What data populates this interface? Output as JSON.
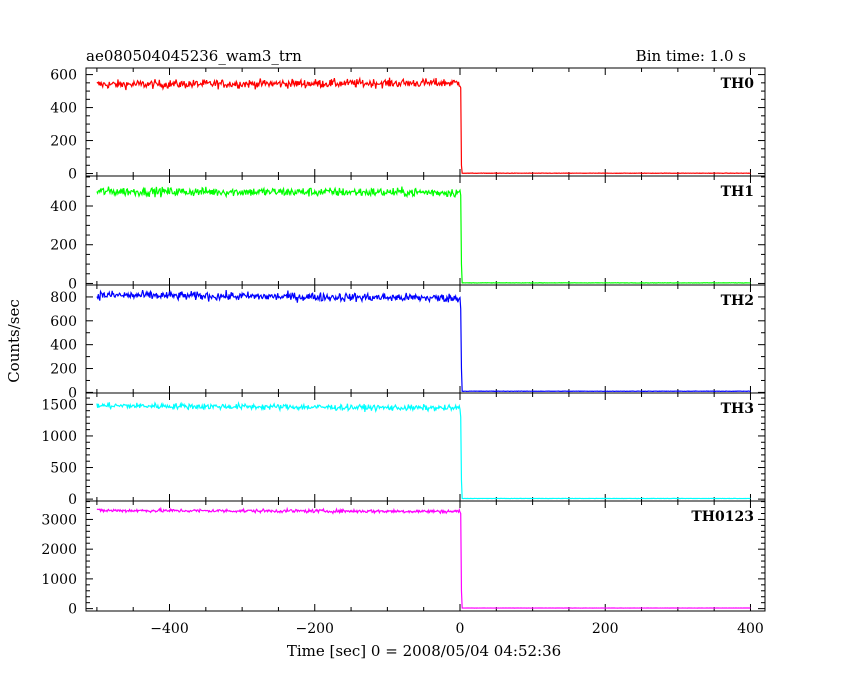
{
  "header": {
    "title": "ae080504045236_wam3_trn",
    "bin_time": "Bin time: 1.0 s"
  },
  "chart_data": {
    "type": "line",
    "xlabel": "Time [sec] 0 = 2008/05/04 04:52:36",
    "ylabel": "Counts/sec",
    "xlim": [
      -515,
      420
    ],
    "x_ticks": [
      -400,
      -200,
      0,
      200,
      400
    ],
    "x_tick_labels": [
      "−400",
      "−200",
      "0",
      "200",
      "400"
    ],
    "x_minor_step": 50,
    "grid": false,
    "panels": [
      {
        "name": "TH0",
        "color": "#ff0000",
        "ylim": [
          -15,
          640
        ],
        "yticks": [
          0,
          200,
          400,
          600
        ],
        "y_minor_step": 50,
        "series": [
          {
            "x": -500,
            "y": 540
          },
          {
            "x": 0,
            "y": 550
          },
          {
            "x": 1,
            "y": 520
          },
          {
            "x": 2,
            "y": 50
          },
          {
            "x": 3,
            "y": 2
          },
          {
            "x": 400,
            "y": 2
          }
        ],
        "noise": 25
      },
      {
        "name": "TH1",
        "color": "#00ff00",
        "ylim": [
          -8,
          555
        ],
        "yticks": [
          0,
          200,
          400
        ],
        "y_minor_step": 50,
        "series": [
          {
            "x": -500,
            "y": 475
          },
          {
            "x": 0,
            "y": 470
          },
          {
            "x": 1,
            "y": 455
          },
          {
            "x": 2,
            "y": 100
          },
          {
            "x": 3,
            "y": 3
          },
          {
            "x": 400,
            "y": 3
          }
        ],
        "noise": 22
      },
      {
        "name": "TH2",
        "color": "#0000ff",
        "ylim": [
          -5,
          900
        ],
        "yticks": [
          0,
          200,
          400,
          600,
          800
        ],
        "y_minor_step": 100,
        "series": [
          {
            "x": -500,
            "y": 815
          },
          {
            "x": 0,
            "y": 790
          },
          {
            "x": 1,
            "y": 700
          },
          {
            "x": 2,
            "y": 200
          },
          {
            "x": 3,
            "y": 10
          },
          {
            "x": 400,
            "y": 10
          }
        ],
        "noise": 35
      },
      {
        "name": "TH3",
        "color": "#00ffff",
        "ylim": [
          -30,
          1680
        ],
        "yticks": [
          0,
          500,
          1000,
          1500
        ],
        "y_minor_step": 100,
        "series": [
          {
            "x": -500,
            "y": 1480
          },
          {
            "x": 0,
            "y": 1440
          },
          {
            "x": 1,
            "y": 1300
          },
          {
            "x": 2,
            "y": 300
          },
          {
            "x": 3,
            "y": 10
          },
          {
            "x": 400,
            "y": 10
          }
        ],
        "noise": 45
      },
      {
        "name": "TH0123",
        "color": "#ff00ff",
        "ylim": [
          -80,
          3620
        ],
        "yticks": [
          0,
          1000,
          2000,
          3000
        ],
        "y_minor_step": 200,
        "series": [
          {
            "x": -500,
            "y": 3300
          },
          {
            "x": 0,
            "y": 3270
          },
          {
            "x": 1,
            "y": 3200
          },
          {
            "x": 2,
            "y": 600
          },
          {
            "x": 3,
            "y": 20
          },
          {
            "x": 400,
            "y": 20
          }
        ],
        "noise": 55
      }
    ]
  }
}
